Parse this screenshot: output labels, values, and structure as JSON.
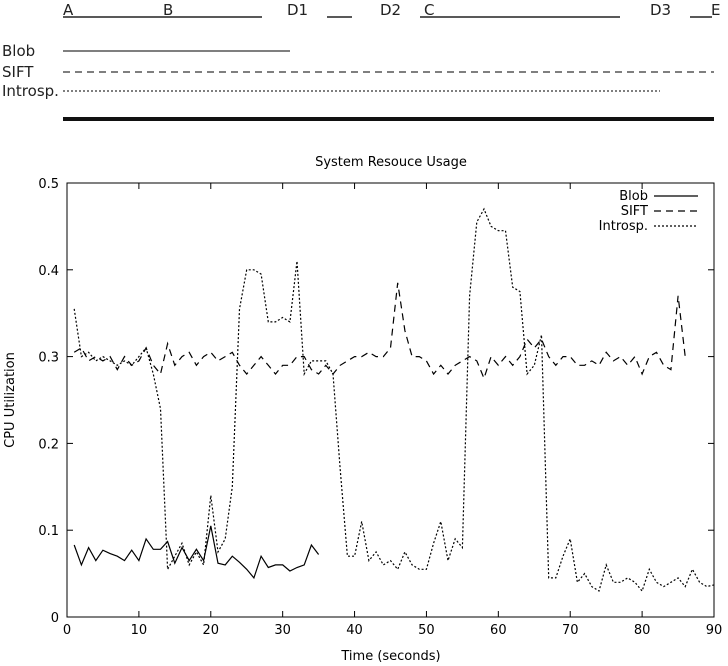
{
  "timeline": {
    "phases": [
      "A",
      "B",
      "D1",
      "D2",
      "C",
      "D3",
      "E"
    ],
    "rows": [
      "Blob",
      "SIFT",
      "Introsp."
    ]
  },
  "chart_data": {
    "type": "line",
    "title": "System Resouce Usage",
    "x_label": "Time (seconds)",
    "y_label": "CPU Utilization",
    "xlim": [
      0,
      90
    ],
    "xticks": [
      0,
      10,
      20,
      30,
      40,
      50,
      60,
      70,
      80,
      90
    ],
    "ylim": [
      0,
      0.5
    ],
    "yticks": [
      0,
      0.1,
      0.2,
      0.3,
      0.4,
      0.5
    ],
    "legend": "upper right",
    "series": [
      {
        "name": "Blob",
        "color": "#000000",
        "style": "solid",
        "x": [
          1,
          2,
          3,
          4,
          5,
          6,
          7,
          8,
          9,
          10,
          11,
          12,
          13,
          14,
          15,
          16,
          17,
          18,
          19,
          20,
          21,
          22,
          23,
          24,
          25,
          26,
          27,
          28,
          29,
          30,
          31,
          32,
          33,
          34,
          35
        ],
        "values": [
          0.083,
          0.06,
          0.08,
          0.065,
          0.077,
          0.073,
          0.07,
          0.065,
          0.077,
          0.065,
          0.09,
          0.078,
          0.078,
          0.087,
          0.062,
          0.08,
          0.065,
          0.078,
          0.065,
          0.105,
          0.062,
          0.06,
          0.07,
          0.063,
          0.055,
          0.045,
          0.07,
          0.057,
          0.06,
          0.06,
          0.053,
          0.057,
          0.06,
          0.083,
          0.072
        ]
      },
      {
        "name": "SIFT",
        "color": "#000000",
        "style": "dashed",
        "x": [
          1,
          2,
          3,
          4,
          5,
          6,
          7,
          8,
          9,
          10,
          11,
          12,
          13,
          14,
          15,
          16,
          17,
          18,
          19,
          20,
          21,
          22,
          23,
          24,
          25,
          26,
          27,
          28,
          29,
          30,
          31,
          32,
          33,
          34,
          35,
          36,
          37,
          38,
          39,
          40,
          41,
          42,
          43,
          44,
          45,
          46,
          47,
          48,
          49,
          50,
          51,
          52,
          53,
          54,
          55,
          56,
          57,
          58,
          59,
          60,
          61,
          62,
          63,
          64,
          65,
          66,
          67,
          68,
          69,
          70,
          71,
          72,
          73,
          74,
          75,
          76,
          77,
          78,
          79,
          80,
          81,
          82,
          83,
          84,
          85,
          86
        ],
        "values": [
          0.305,
          0.31,
          0.295,
          0.3,
          0.295,
          0.3,
          0.285,
          0.3,
          0.29,
          0.295,
          0.31,
          0.29,
          0.28,
          0.315,
          0.29,
          0.3,
          0.305,
          0.29,
          0.3,
          0.305,
          0.295,
          0.3,
          0.305,
          0.29,
          0.28,
          0.29,
          0.3,
          0.29,
          0.28,
          0.29,
          0.29,
          0.3,
          0.3,
          0.285,
          0.28,
          0.29,
          0.28,
          0.29,
          0.295,
          0.3,
          0.3,
          0.305,
          0.3,
          0.3,
          0.31,
          0.385,
          0.33,
          0.3,
          0.3,
          0.295,
          0.28,
          0.29,
          0.28,
          0.29,
          0.295,
          0.3,
          0.295,
          0.275,
          0.3,
          0.29,
          0.3,
          0.29,
          0.3,
          0.32,
          0.31,
          0.32,
          0.3,
          0.29,
          0.3,
          0.3,
          0.29,
          0.29,
          0.295,
          0.29,
          0.305,
          0.295,
          0.3,
          0.29,
          0.3,
          0.28,
          0.3,
          0.305,
          0.29,
          0.285,
          0.37,
          0.3
        ]
      },
      {
        "name": "Introsp.",
        "color": "#000000",
        "style": "dotted",
        "x": [
          1,
          2,
          3,
          4,
          5,
          6,
          7,
          8,
          9,
          10,
          11,
          12,
          13,
          14,
          15,
          16,
          17,
          18,
          19,
          20,
          21,
          22,
          23,
          24,
          25,
          26,
          27,
          28,
          29,
          30,
          31,
          32,
          33,
          34,
          35,
          36,
          37,
          38,
          39,
          40,
          41,
          42,
          43,
          44,
          45,
          46,
          47,
          48,
          49,
          50,
          51,
          52,
          53,
          54,
          55,
          56,
          57,
          58,
          59,
          60,
          61,
          62,
          63,
          64,
          65,
          66,
          67,
          68,
          69,
          70,
          71,
          72,
          73,
          74,
          75,
          76,
          77,
          78,
          79,
          80,
          81,
          82,
          83,
          84,
          85,
          86,
          87,
          88,
          89,
          90
        ],
        "values": [
          0.355,
          0.3,
          0.305,
          0.295,
          0.3,
          0.295,
          0.29,
          0.295,
          0.29,
          0.3,
          0.31,
          0.28,
          0.24,
          0.055,
          0.07,
          0.085,
          0.06,
          0.075,
          0.06,
          0.14,
          0.075,
          0.09,
          0.15,
          0.355,
          0.4,
          0.4,
          0.395,
          0.34,
          0.34,
          0.345,
          0.34,
          0.41,
          0.28,
          0.295,
          0.295,
          0.295,
          0.28,
          0.17,
          0.07,
          0.07,
          0.11,
          0.065,
          0.075,
          0.06,
          0.065,
          0.055,
          0.075,
          0.06,
          0.055,
          0.055,
          0.085,
          0.11,
          0.065,
          0.09,
          0.08,
          0.37,
          0.455,
          0.47,
          0.45,
          0.445,
          0.445,
          0.38,
          0.375,
          0.28,
          0.29,
          0.325,
          0.045,
          0.045,
          0.07,
          0.09,
          0.04,
          0.05,
          0.035,
          0.03,
          0.06,
          0.04,
          0.04,
          0.045,
          0.04,
          0.03,
          0.055,
          0.04,
          0.035,
          0.04,
          0.045,
          0.035,
          0.055,
          0.04,
          0.035,
          0.037
        ]
      }
    ]
  }
}
